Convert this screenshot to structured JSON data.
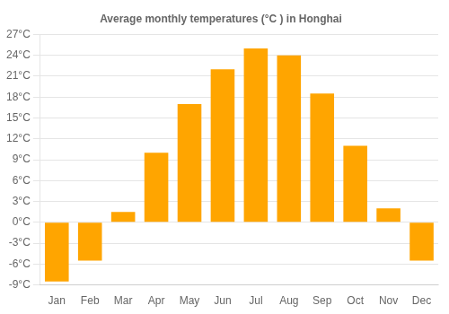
{
  "chart_data": {
    "type": "bar",
    "title": "Average monthly temperatures (°C ) in Honghai",
    "categories": [
      "Jan",
      "Feb",
      "Mar",
      "Apr",
      "May",
      "Jun",
      "Jul",
      "Aug",
      "Sep",
      "Oct",
      "Nov",
      "Dec"
    ],
    "values": [
      -8.5,
      -5.5,
      1.5,
      10.0,
      17.0,
      22.0,
      25.0,
      24.0,
      18.5,
      11.0,
      2.0,
      -5.5
    ],
    "color": "#FFA500",
    "ylim": [
      -9,
      27
    ],
    "yticks": [
      {
        "value": -9,
        "label": "-9°C"
      },
      {
        "value": -6,
        "label": "-6°C"
      },
      {
        "value": -3,
        "label": "-3°C"
      },
      {
        "value": 0,
        "label": "0°C"
      },
      {
        "value": 3,
        "label": "3°C"
      },
      {
        "value": 6,
        "label": "6°C"
      },
      {
        "value": 9,
        "label": "9°C"
      },
      {
        "value": 12,
        "label": "12°C"
      },
      {
        "value": 15,
        "label": "15°C"
      },
      {
        "value": 18,
        "label": "18°C"
      },
      {
        "value": 21,
        "label": "21°C"
      },
      {
        "value": 24,
        "label": "24°C"
      },
      {
        "value": 27,
        "label": "27°C"
      }
    ],
    "grid": true
  }
}
